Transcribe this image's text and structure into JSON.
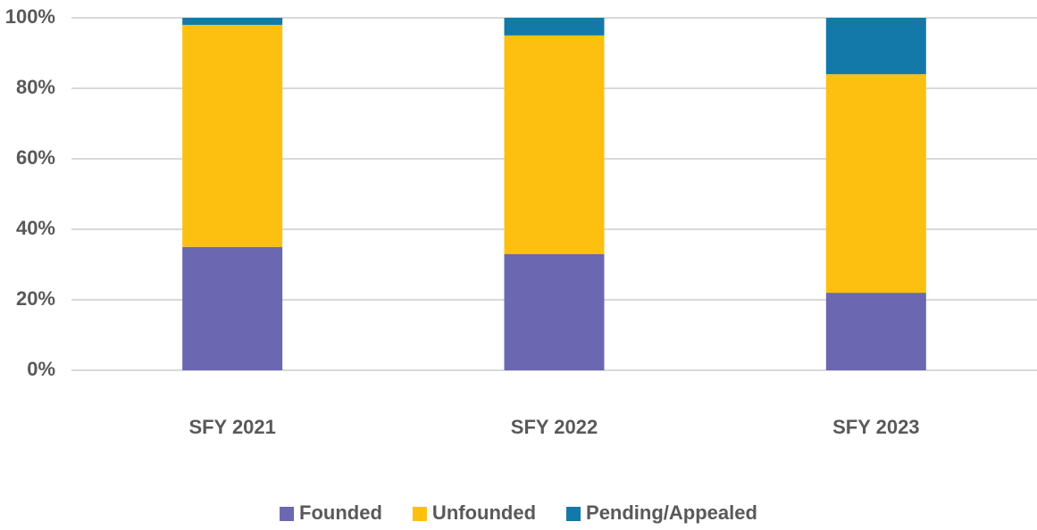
{
  "chart_data": {
    "type": "stacked_bar",
    "categories": [
      "SFY 2021",
      "SFY 2022",
      "SFY 2023"
    ],
    "series": [
      {
        "name": "Founded",
        "color": "#6b67b0",
        "values": [
          35,
          33,
          22
        ]
      },
      {
        "name": "Unfounded",
        "color": "#fdc010",
        "values": [
          63,
          62,
          62
        ]
      },
      {
        "name": "Pending/Appealed",
        "color": "#1279a8",
        "values": [
          2,
          5,
          16
        ]
      }
    ],
    "ylim": [
      0,
      100
    ],
    "yticks": [
      {
        "value": 0,
        "label": "0%"
      },
      {
        "value": 20,
        "label": "20%"
      },
      {
        "value": 40,
        "label": "40%"
      },
      {
        "value": 60,
        "label": "60%"
      },
      {
        "value": 80,
        "label": "80%"
      },
      {
        "value": 100,
        "label": "100%"
      }
    ],
    "grid": true,
    "legend": "bottom"
  }
}
